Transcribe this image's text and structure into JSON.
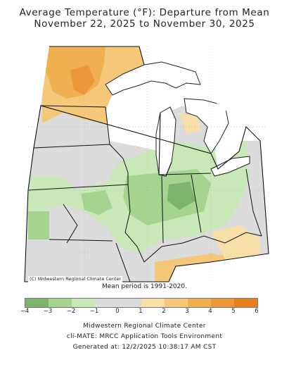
{
  "title_line1": "Average Temperature (°F): Departure from Mean",
  "title_line2": "November 22, 2025 to November 30, 2025",
  "credit": "(C) Midwestern Regional Climate Center",
  "mean_period": "Mean period is 1991-2020.",
  "legend": {
    "colors": [
      "#7cb46d",
      "#a4d490",
      "#c8e8b8",
      "#dcdcdc",
      "#dcdcdc",
      "#f8e0a8",
      "#f4c878",
      "#f0b050",
      "#ec9838",
      "#e88020"
    ],
    "tick_labels": [
      "−4",
      "−3",
      "−2",
      "−1",
      "0",
      "1",
      "2",
      "3",
      "4",
      "5",
      "6"
    ]
  },
  "footer": {
    "line1": "Midwestern Regional Climate Center",
    "line2": "cli-MATE: MRCC Application Tools Environment",
    "line3": "Generated at: 12/2/2025 10:38:17 AM CST"
  }
}
